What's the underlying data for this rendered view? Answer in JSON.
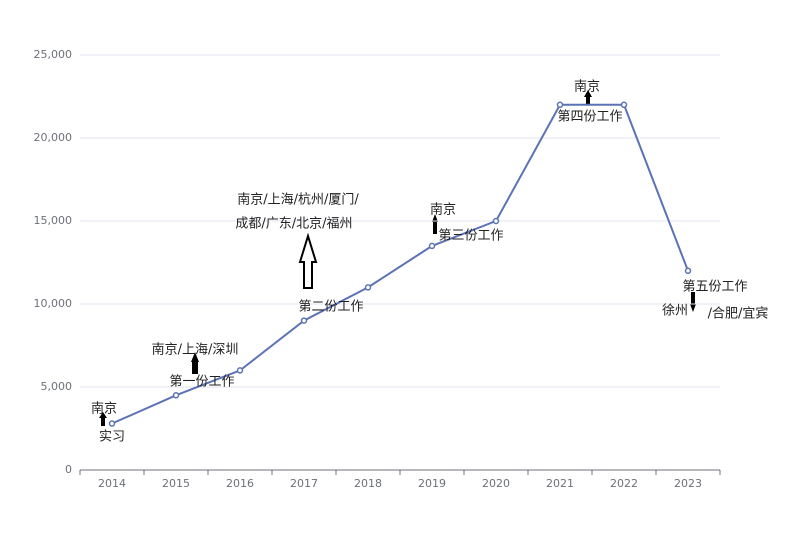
{
  "chart_data": {
    "type": "line",
    "categories": [
      "2014",
      "2015",
      "2016",
      "2017",
      "2018",
      "2019",
      "2020",
      "2021",
      "2022",
      "2023"
    ],
    "series": [
      {
        "color": "#5b72b5",
        "values": [
          2800,
          4500,
          6000,
          9000,
          11000,
          13500,
          15000,
          22000,
          22000,
          12000
        ]
      }
    ],
    "ylim": [
      0,
      25000
    ],
    "yticks": [
      0,
      {
        "value": 5000,
        "label": "5,000"
      },
      {
        "value": 10000,
        "label": "10,000"
      },
      {
        "value": 15000,
        "label": "15,000"
      },
      {
        "value": 20000,
        "label": "20,000"
      },
      {
        "value": 25000,
        "label": "25,000"
      }
    ],
    "grid": true,
    "annotations": [
      "南京",
      "实习",
      "南京/上海/深圳",
      "第一份工作",
      "南京/上海/杭州/厦门/",
      "成都/广东/北京/福州",
      "第二份工作",
      "南京",
      "第三份工作",
      "南京",
      "第四份工作",
      "第五份工作",
      "徐州",
      "/合肥/宜宾"
    ]
  }
}
